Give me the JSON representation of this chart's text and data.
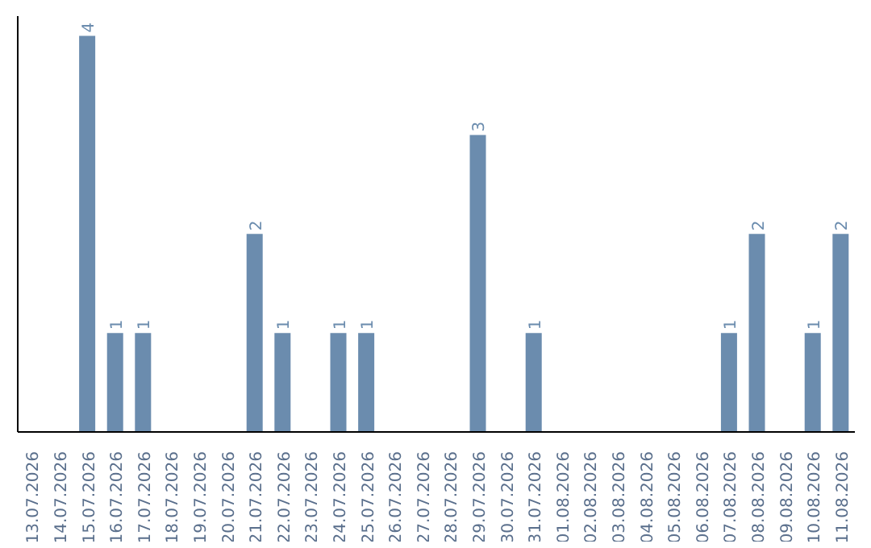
{
  "chart_data": {
    "type": "bar",
    "categories": [
      "13.07.2026",
      "14.07.2026",
      "15.07.2026",
      "16.07.2026",
      "17.07.2026",
      "18.07.2026",
      "19.07.2026",
      "20.07.2026",
      "21.07.2026",
      "22.07.2026",
      "23.07.2026",
      "24.07.2026",
      "25.07.2026",
      "26.07.2026",
      "27.07.2026",
      "28.07.2026",
      "29.07.2026",
      "30.07.2026",
      "31.07.2026",
      "01.08.2026",
      "02.08.2026",
      "03.08.2026",
      "04.08.2026",
      "05.08.2026",
      "06.08.2026",
      "07.08.2026",
      "08.08.2026",
      "09.08.2026",
      "10.08.2026",
      "11.08.2026"
    ],
    "values": [
      0,
      0,
      4,
      1,
      1,
      0,
      0,
      0,
      2,
      1,
      0,
      1,
      1,
      0,
      0,
      0,
      3,
      0,
      1,
      0,
      0,
      0,
      0,
      0,
      0,
      1,
      2,
      0,
      1,
      2
    ],
    "value_labels": [
      null,
      null,
      "4",
      "1",
      "1",
      null,
      null,
      null,
      "2",
      "1",
      null,
      "1",
      "1",
      null,
      null,
      null,
      "3",
      null,
      "1",
      null,
      null,
      null,
      null,
      null,
      null,
      "1",
      "2",
      null,
      "1",
      "2"
    ],
    "color": "#6b8cae",
    "grid": false,
    "tick_labels": "x",
    "legend": false
  }
}
